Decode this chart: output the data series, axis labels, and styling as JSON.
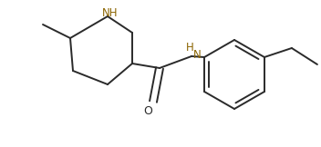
{
  "background_color": "#ffffff",
  "line_color": "#2a2a2a",
  "line_width": 1.4,
  "nh_color": "#8B6400",
  "o_color": "#2a2a2a",
  "figsize": [
    3.52,
    1.62
  ],
  "dpi": 100,
  "xlim": [
    0,
    352
  ],
  "ylim": [
    0,
    162
  ]
}
